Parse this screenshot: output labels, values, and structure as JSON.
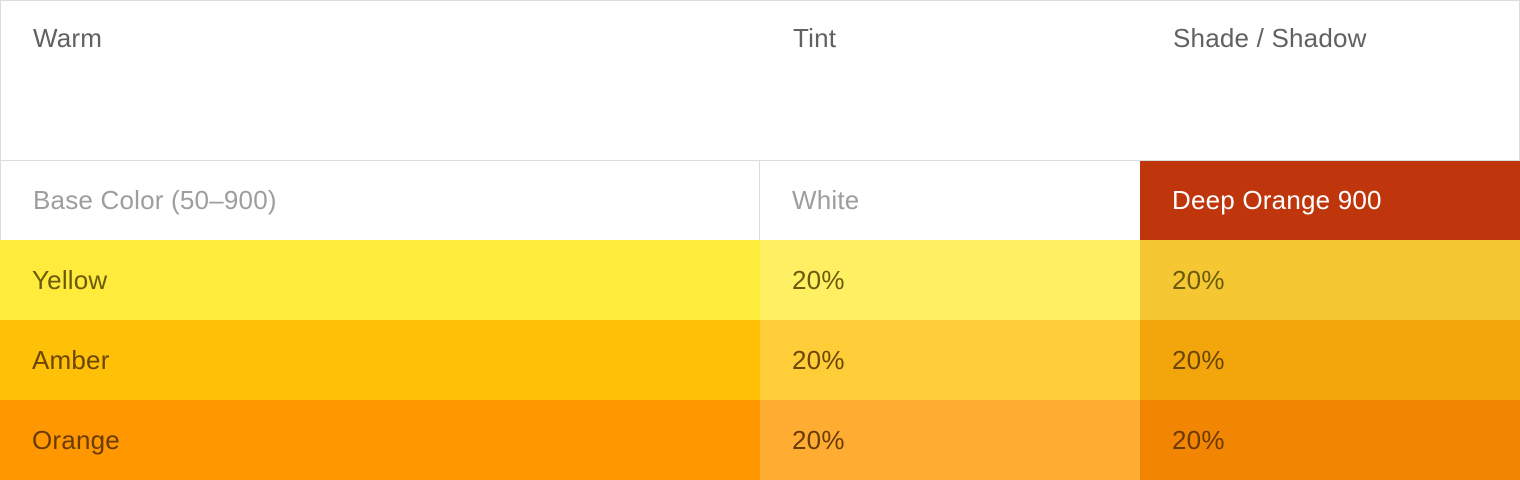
{
  "header": {
    "col1": "Warm",
    "col2": "Tint",
    "col3": "Shade / Shadow"
  },
  "subheader": {
    "col1": "Base Color (50–900)",
    "col2": "White",
    "col3": "Deep Orange 900",
    "col3_bg": "#BF360C"
  },
  "rows": [
    {
      "name": "Yellow",
      "tint": "20%",
      "shade": "20%",
      "base_bg": "#FFEB3B",
      "tint_bg": "#FFEF62",
      "shade_bg": "#F4C733",
      "text_color": "#6B5A0A"
    },
    {
      "name": "Amber",
      "tint": "20%",
      "shade": "20%",
      "base_bg": "#FFC107",
      "tint_bg": "#FFCD38",
      "shade_bg": "#F3A60C",
      "text_color": "#6B4606"
    },
    {
      "name": "Orange",
      "tint": "20%",
      "shade": "20%",
      "base_bg": "#FF9800",
      "tint_bg": "#FFAC33",
      "shade_bg": "#F28502",
      "text_color": "#6B3A05"
    }
  ]
}
